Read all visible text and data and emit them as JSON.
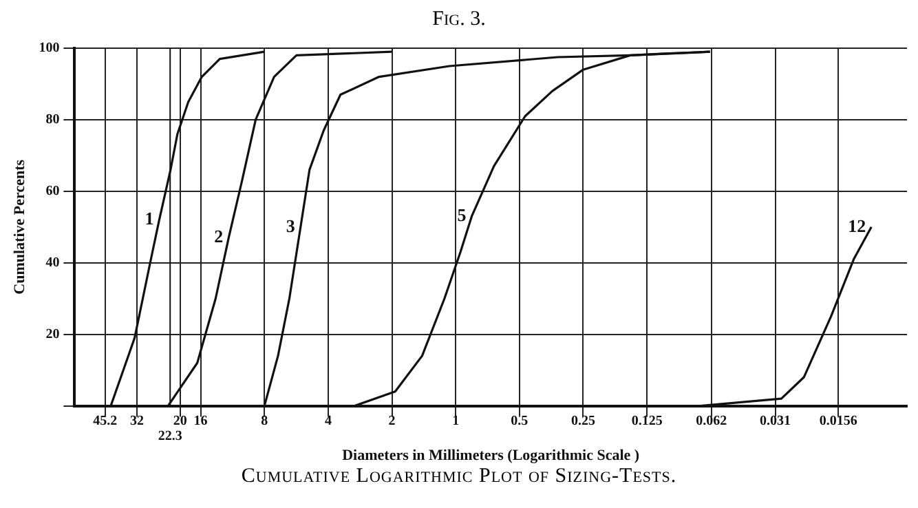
{
  "chart_data": {
    "type": "line",
    "title": "Fig. 3.",
    "xlabel": "Diameters in Millimeters (Logarithmic Scale )",
    "ylabel": "Cumulative Percents",
    "annotations": [
      "Cumulative Logarithmic Plot of Sizing-Tests."
    ],
    "log": "x",
    "xlim": [
      63,
      0.0074
    ],
    "ref_lines": [
      {
        "axis": "x",
        "value": 22.3,
        "label": "22.3"
      }
    ],
    "xticks": [
      45.2,
      32,
      20,
      16,
      8,
      4,
      2,
      1,
      0.5,
      0.25,
      0.125,
      0.062,
      0.031,
      0.0156
    ],
    "ylim": [
      0,
      100
    ],
    "yticks": [
      {
        "value": 0,
        "label": null
      },
      20,
      40,
      60,
      80,
      100
    ],
    "grid": true,
    "legend": false,
    "marker": "none",
    "line_style": "solid",
    "series": [
      {
        "name": "1",
        "color": "#111111",
        "x": [
          42.5,
          32.8,
          27.7,
          25.1,
          22.2,
          20.6,
          18.3,
          15.8,
          13.0,
          8
        ],
        "values": [
          0,
          19,
          40,
          52,
          66,
          76,
          85,
          92,
          97,
          99
        ]
      },
      {
        "name": "2",
        "color": "#111111",
        "x": [
          22.8,
          16.6,
          13.6,
          11.8,
          10.2,
          8.8,
          7.2,
          5.65,
          2.0
        ],
        "values": [
          0,
          12,
          30,
          47,
          63,
          80,
          92,
          98,
          99
        ]
      },
      {
        "name": "3",
        "color": "#111111",
        "x": [
          8,
          6.9,
          6.1,
          5.4,
          4.9,
          4.2,
          3.5,
          2.3,
          1.07,
          0.33,
          0.15,
          0.063
        ],
        "values": [
          0,
          14,
          30,
          50,
          66,
          77,
          87,
          92,
          95,
          97.5,
          98,
          99
        ]
      },
      {
        "name": "5",
        "color": "#111111",
        "x": [
          3.0,
          1.93,
          1.44,
          1.13,
          0.95,
          0.84,
          0.66,
          0.47,
          0.35,
          0.25,
          0.15,
          0.103,
          0.063
        ],
        "values": [
          0,
          4,
          14,
          30,
          43,
          53,
          67,
          81,
          88,
          94,
          98,
          98.5,
          99
        ]
      },
      {
        "name": "12",
        "color": "#111111",
        "x": [
          0.07,
          0.029,
          0.0227,
          0.0169,
          0.0132,
          0.0109
        ],
        "values": [
          0,
          2,
          8,
          25,
          41,
          50
        ]
      }
    ]
  }
}
